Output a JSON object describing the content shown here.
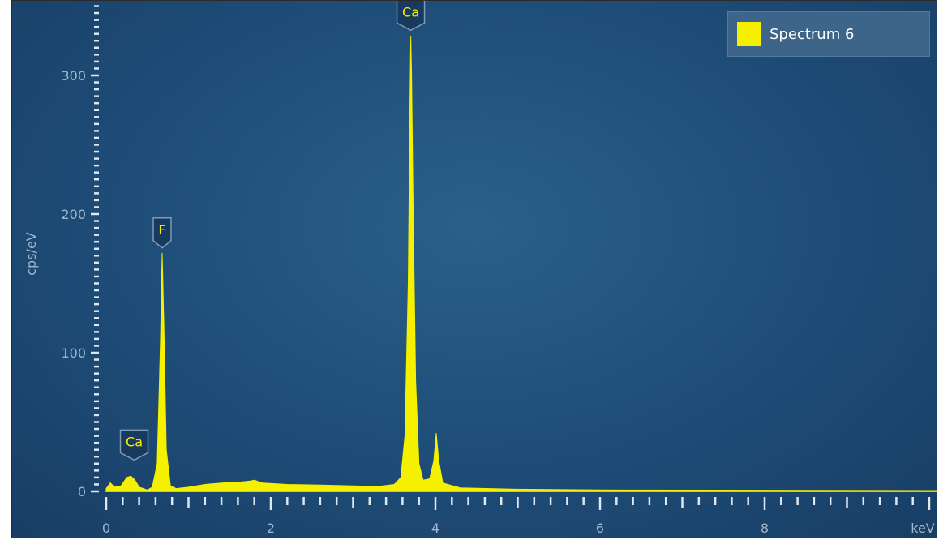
{
  "chart_data": {
    "type": "area",
    "xlabel": "keV",
    "ylabel": "cps/eV",
    "xlim": [
      -0.05,
      10.1
    ],
    "ylim": [
      -5,
      350
    ],
    "x_ticks": [
      0,
      2,
      4,
      6,
      8
    ],
    "y_ticks": [
      0,
      100,
      200,
      300
    ],
    "grid": false,
    "legend_position": "top-right",
    "series": [
      {
        "name": "Spectrum 6",
        "color": "#f4f000",
        "points": [
          [
            0.0,
            2
          ],
          [
            0.05,
            6
          ],
          [
            0.1,
            3
          ],
          [
            0.18,
            4
          ],
          [
            0.25,
            10
          ],
          [
            0.3,
            11
          ],
          [
            0.35,
            8
          ],
          [
            0.4,
            3
          ],
          [
            0.45,
            2
          ],
          [
            0.5,
            1
          ],
          [
            0.56,
            3
          ],
          [
            0.62,
            20
          ],
          [
            0.66,
            110
          ],
          [
            0.68,
            172
          ],
          [
            0.7,
            120
          ],
          [
            0.73,
            30
          ],
          [
            0.78,
            4
          ],
          [
            0.85,
            2
          ],
          [
            1.0,
            3
          ],
          [
            1.2,
            5
          ],
          [
            1.4,
            6
          ],
          [
            1.6,
            6.5
          ],
          [
            1.75,
            7.5
          ],
          [
            1.8,
            8
          ],
          [
            1.9,
            6
          ],
          [
            2.2,
            5
          ],
          [
            2.6,
            4.5
          ],
          [
            3.0,
            4
          ],
          [
            3.3,
            3.5
          ],
          [
            3.5,
            5
          ],
          [
            3.58,
            10
          ],
          [
            3.63,
            40
          ],
          [
            3.67,
            150
          ],
          [
            3.69,
            275
          ],
          [
            3.7,
            328
          ],
          [
            3.71,
            300
          ],
          [
            3.73,
            200
          ],
          [
            3.76,
            80
          ],
          [
            3.8,
            20
          ],
          [
            3.85,
            8
          ],
          [
            3.93,
            9
          ],
          [
            3.98,
            22
          ],
          [
            4.01,
            42
          ],
          [
            4.04,
            22
          ],
          [
            4.09,
            6
          ],
          [
            4.3,
            2.5
          ],
          [
            5.0,
            1.5
          ],
          [
            6.0,
            1
          ],
          [
            8.0,
            0.8
          ],
          [
            10.1,
            0.6
          ]
        ]
      }
    ],
    "annotations": [
      {
        "label": "Ca",
        "x": 0.34,
        "y": 22
      },
      {
        "label": "F",
        "x": 0.68,
        "y": 175
      },
      {
        "label": "Ca",
        "x": 3.7,
        "y": 332
      }
    ]
  }
}
